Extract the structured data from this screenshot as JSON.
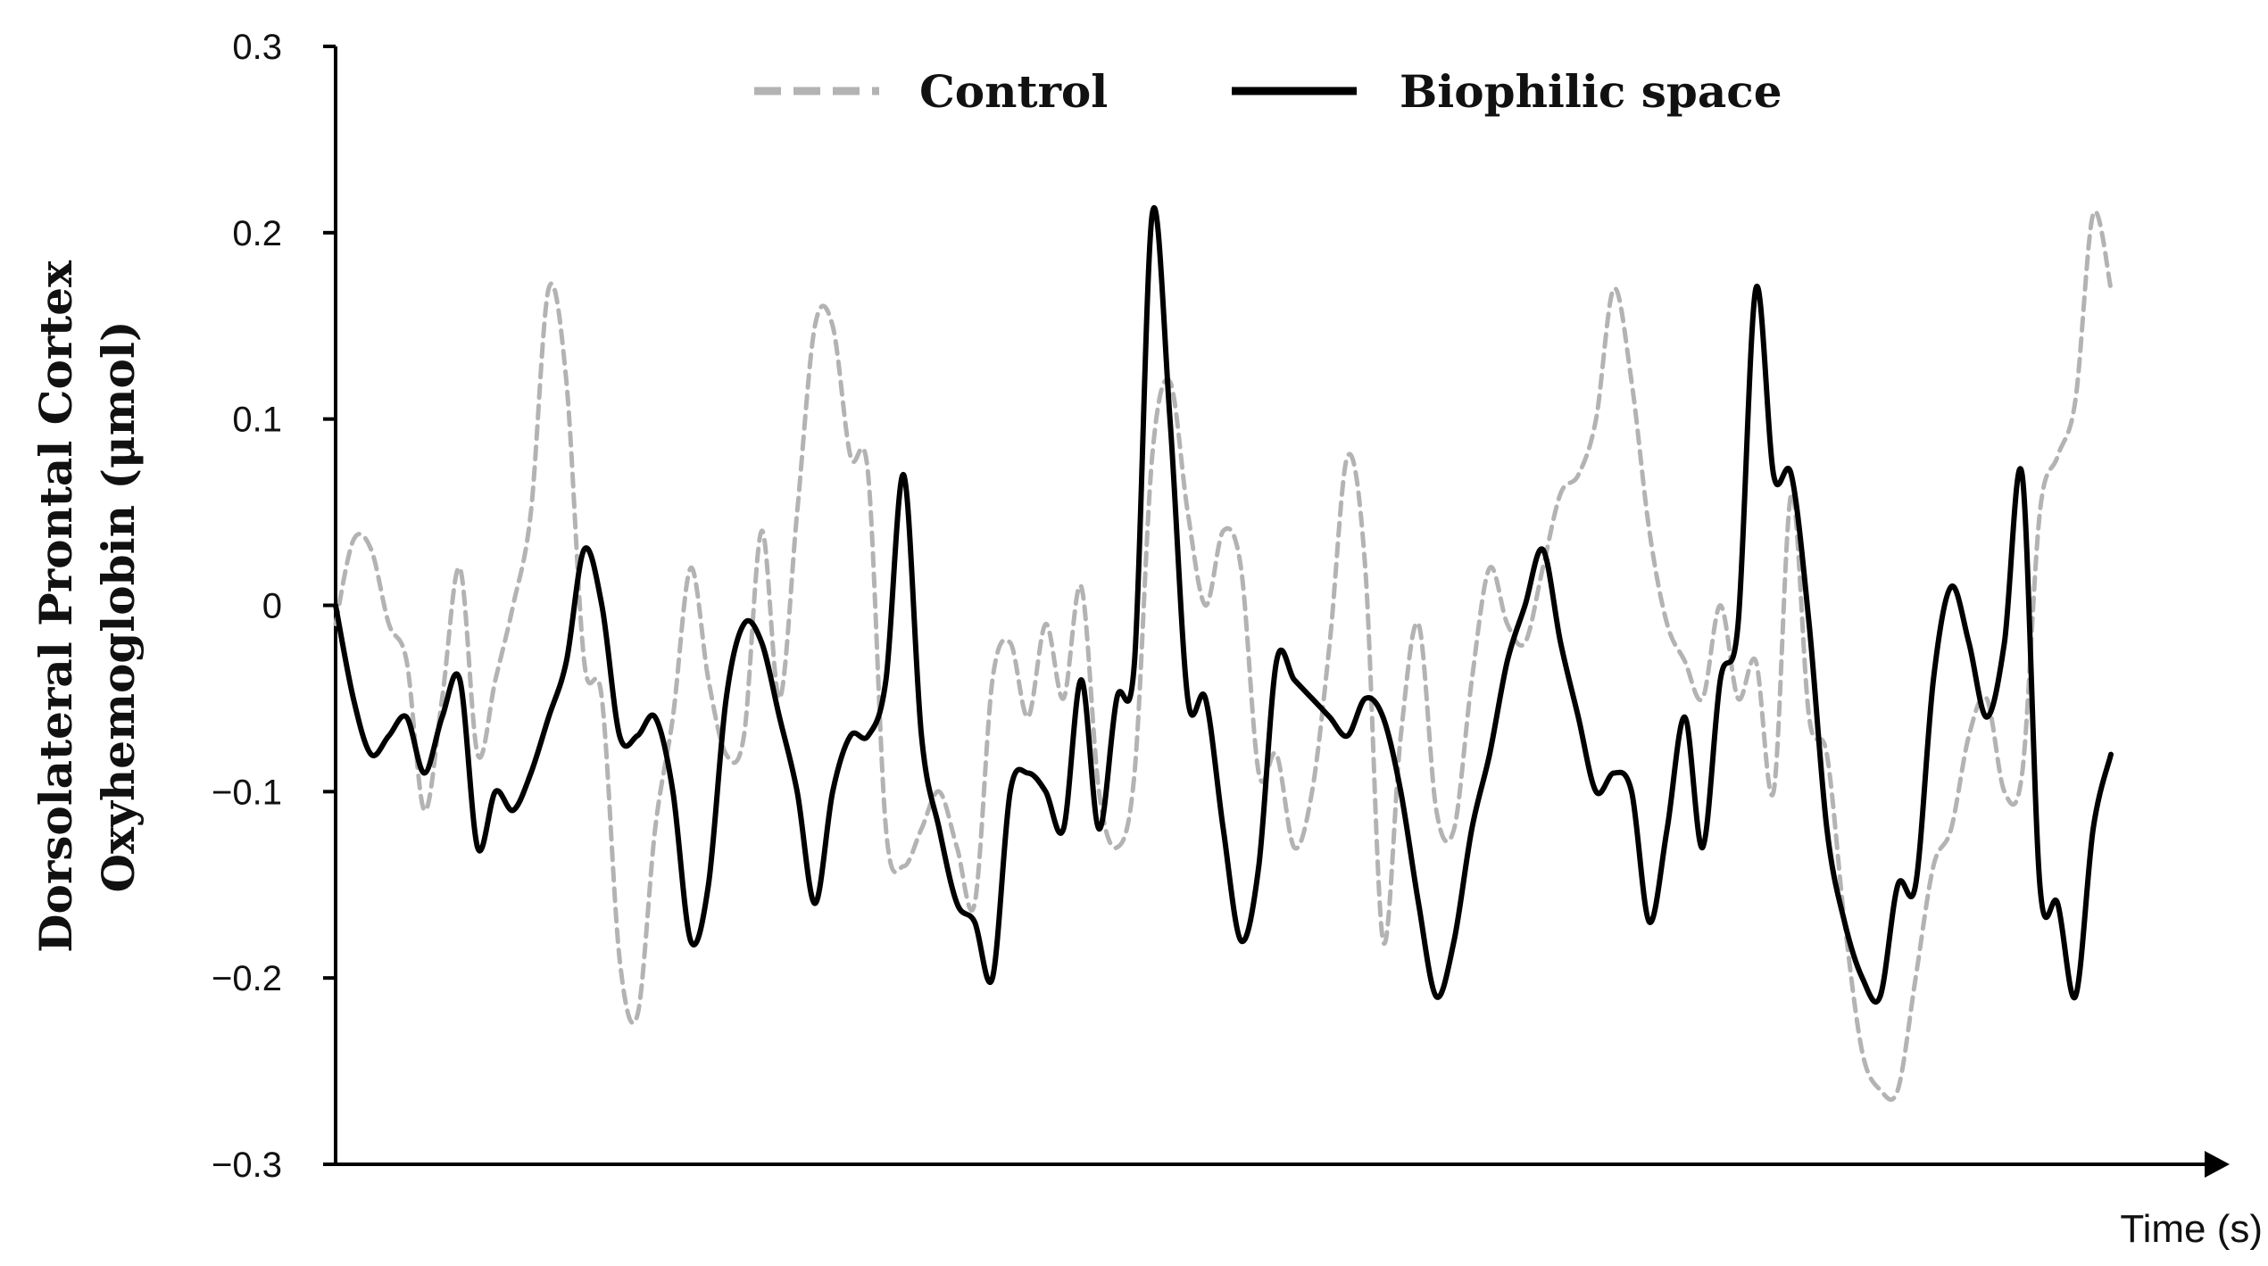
{
  "chart_data": {
    "type": "line",
    "title": "",
    "xlabel": "Time (s)",
    "ylabel_lines": [
      "Dorsolateral Prontal Cortex",
      "Oxyhemoglobin (μmol)"
    ],
    "ylim": [
      -0.3,
      0.3
    ],
    "yticks": [
      {
        "value": 0.3,
        "label": "0.3"
      },
      {
        "value": 0.2,
        "label": "0.2"
      },
      {
        "value": 0.1,
        "label": "0.1"
      },
      {
        "value": 0,
        "label": "0"
      },
      {
        "value": -0.1,
        "label": "−0.1"
      },
      {
        "value": -0.2,
        "label": "−0.2"
      },
      {
        "value": -0.3,
        "label": "−0.3"
      }
    ],
    "x_ticks_shown": false,
    "grid": false,
    "legend_position": "top-center",
    "x": [
      0,
      1,
      2,
      3,
      4,
      5,
      6,
      7,
      8,
      9,
      10,
      11,
      12,
      13,
      14,
      15,
      16,
      17,
      18,
      19,
      20,
      21,
      22,
      23,
      24,
      25,
      26,
      27,
      28,
      29,
      30,
      31,
      32,
      33,
      34,
      35,
      36,
      37,
      38,
      39,
      40,
      41,
      42,
      43,
      44,
      45,
      46,
      47,
      48,
      49,
      50,
      51,
      52,
      53,
      54,
      55,
      56,
      57,
      58,
      59,
      60,
      61,
      62,
      63,
      64,
      65,
      66,
      67,
      68,
      69,
      70,
      71,
      72,
      73,
      74,
      75,
      76,
      77,
      78,
      79,
      80,
      81,
      82,
      83,
      84,
      85,
      86,
      87,
      88,
      89,
      90,
      91,
      92,
      93,
      94,
      95,
      96,
      97,
      98,
      99,
      100
    ],
    "series": [
      {
        "name": "Control",
        "color": "#b3b3b3",
        "style": "dashed",
        "values": [
          -0.01,
          0.035,
          0.03,
          -0.01,
          -0.03,
          -0.11,
          -0.05,
          0.02,
          -0.08,
          -0.04,
          0.0,
          0.05,
          0.17,
          0.12,
          -0.03,
          -0.05,
          -0.19,
          -0.22,
          -0.12,
          -0.06,
          0.02,
          -0.04,
          -0.08,
          -0.07,
          0.04,
          -0.05,
          0.05,
          0.15,
          0.15,
          0.08,
          0.07,
          -0.12,
          -0.14,
          -0.12,
          -0.1,
          -0.13,
          -0.16,
          -0.04,
          -0.02,
          -0.06,
          -0.01,
          -0.05,
          0.01,
          -0.1,
          -0.13,
          -0.09,
          0.08,
          0.12,
          0.05,
          0.0,
          0.04,
          0.02,
          -0.09,
          -0.08,
          -0.13,
          -0.1,
          -0.02,
          0.08,
          0.02,
          -0.18,
          -0.07,
          -0.01,
          -0.11,
          -0.12,
          -0.04,
          0.02,
          -0.01,
          -0.02,
          0.02,
          0.06,
          0.07,
          0.1,
          0.17,
          0.12,
          0.04,
          -0.01,
          -0.03,
          -0.05,
          0.0,
          -0.05,
          -0.03,
          -0.1,
          0.06,
          -0.06,
          -0.08,
          -0.17,
          -0.24,
          -0.26,
          -0.26,
          -0.2,
          -0.14,
          -0.12,
          -0.07,
          -0.05,
          -0.1,
          -0.09,
          0.05,
          0.08,
          0.11,
          0.21,
          0.17
        ]
      },
      {
        "name": "Biophilic space",
        "color": "#000000",
        "style": "solid",
        "values": [
          0.0,
          -0.05,
          -0.08,
          -0.07,
          -0.06,
          -0.09,
          -0.06,
          -0.04,
          -0.13,
          -0.1,
          -0.11,
          -0.09,
          -0.06,
          -0.03,
          0.03,
          0.0,
          -0.07,
          -0.07,
          -0.06,
          -0.1,
          -0.18,
          -0.15,
          -0.05,
          -0.01,
          -0.02,
          -0.06,
          -0.1,
          -0.16,
          -0.1,
          -0.07,
          -0.07,
          -0.04,
          0.07,
          -0.07,
          -0.12,
          -0.16,
          -0.17,
          -0.2,
          -0.1,
          -0.09,
          -0.1,
          -0.12,
          -0.04,
          -0.12,
          -0.05,
          -0.03,
          0.21,
          0.1,
          -0.05,
          -0.05,
          -0.12,
          -0.18,
          -0.14,
          -0.03,
          -0.04,
          -0.05,
          -0.06,
          -0.07,
          -0.05,
          -0.06,
          -0.1,
          -0.16,
          -0.21,
          -0.18,
          -0.12,
          -0.08,
          -0.03,
          0.0,
          0.03,
          -0.02,
          -0.06,
          -0.1,
          -0.09,
          -0.1,
          -0.17,
          -0.12,
          -0.06,
          -0.13,
          -0.04,
          -0.01,
          0.17,
          0.07,
          0.07,
          -0.01,
          -0.12,
          -0.17,
          -0.2,
          -0.21,
          -0.15,
          -0.15,
          -0.04,
          0.01,
          -0.02,
          -0.06,
          -0.02,
          0.07,
          -0.15,
          -0.16,
          -0.21,
          -0.12,
          -0.08
        ]
      }
    ]
  }
}
